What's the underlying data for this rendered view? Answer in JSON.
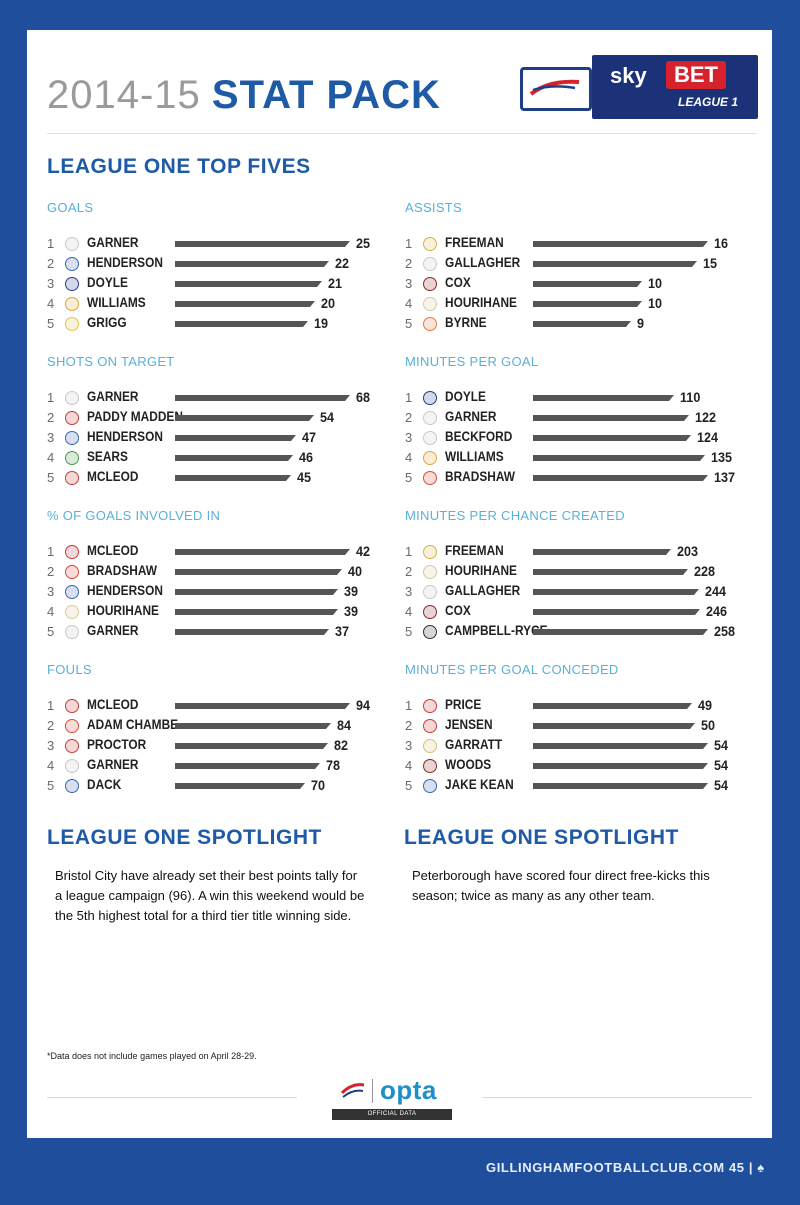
{
  "title": {
    "year": "2014-15",
    "main": "STAT PACK"
  },
  "brand": {
    "sky": "sky",
    "bet": "BET",
    "league": "LEAGUE 1"
  },
  "section_heading": "LEAGUE ONE TOP FIVES",
  "tables": [
    {
      "title": "GOALS",
      "rows": [
        {
          "rank": "1",
          "name": "GARNER",
          "value": 25,
          "badge": "#c9c9c9"
        },
        {
          "rank": "2",
          "name": "HENDERSON",
          "value": 22,
          "badge": "#3a66b5"
        },
        {
          "rank": "3",
          "name": "DOYLE",
          "value": 21,
          "badge": "#283b8a"
        },
        {
          "rank": "4",
          "name": "WILLIAMS",
          "value": 20,
          "badge": "#e8a33c"
        },
        {
          "rank": "5",
          "name": "GRIGG",
          "value": 19,
          "badge": "#e4c14a"
        }
      ]
    },
    {
      "title": "ASSISTS",
      "rows": [
        {
          "rank": "1",
          "name": "FREEMAN",
          "value": 16,
          "badge": "#d9b24c"
        },
        {
          "rank": "2",
          "name": "GALLAGHER",
          "value": 15,
          "badge": "#c9c9c9"
        },
        {
          "rank": "3",
          "name": "COX",
          "value": 10,
          "badge": "#8a2a2a"
        },
        {
          "rank": "4",
          "name": "HOURIHANE",
          "value": 10,
          "badge": "#d9c9a0"
        },
        {
          "rank": "5",
          "name": "BYRNE",
          "value": 9,
          "badge": "#e37b3a"
        }
      ]
    },
    {
      "title": "SHOTS ON TARGET",
      "rows": [
        {
          "rank": "1",
          "name": "GARNER",
          "value": 68,
          "badge": "#c9c9c9"
        },
        {
          "rank": "2",
          "name": "PADDY MADDEN",
          "value": 54,
          "badge": "#c93c3c"
        },
        {
          "rank": "3",
          "name": "HENDERSON",
          "value": 47,
          "badge": "#3a66b5"
        },
        {
          "rank": "4",
          "name": "SEARS",
          "value": 46,
          "badge": "#4a9a4a"
        },
        {
          "rank": "5",
          "name": "MCLEOD",
          "value": 45,
          "badge": "#c93c3c"
        }
      ]
    },
    {
      "title": "MINUTES PER GOAL",
      "rows": [
        {
          "rank": "1",
          "name": "DOYLE",
          "value": 110,
          "badge": "#283b8a"
        },
        {
          "rank": "2",
          "name": "GARNER",
          "value": 122,
          "badge": "#c9c9c9"
        },
        {
          "rank": "3",
          "name": "BECKFORD",
          "value": 124,
          "badge": "#c9c9c9"
        },
        {
          "rank": "4",
          "name": "WILLIAMS",
          "value": 135,
          "badge": "#e8a33c"
        },
        {
          "rank": "5",
          "name": "BRADSHAW",
          "value": 137,
          "badge": "#d94c3a"
        }
      ]
    },
    {
      "title": "% OF GOALS INVOLVED IN",
      "rows": [
        {
          "rank": "1",
          "name": "MCLEOD",
          "value": 42,
          "badge": "#c93c3c"
        },
        {
          "rank": "2",
          "name": "BRADSHAW",
          "value": 40,
          "badge": "#d94c3a"
        },
        {
          "rank": "3",
          "name": "HENDERSON",
          "value": 39,
          "badge": "#3a66b5"
        },
        {
          "rank": "4",
          "name": "HOURIHANE",
          "value": 39,
          "badge": "#d9c9a0"
        },
        {
          "rank": "5",
          "name": "GARNER",
          "value": 37,
          "badge": "#c9c9c9"
        }
      ]
    },
    {
      "title": "MINUTES PER CHANCE CREATED",
      "rows": [
        {
          "rank": "1",
          "name": "FREEMAN",
          "value": 203,
          "badge": "#d9b24c"
        },
        {
          "rank": "2",
          "name": "HOURIHANE",
          "value": 228,
          "badge": "#d9c9a0"
        },
        {
          "rank": "3",
          "name": "GALLAGHER",
          "value": 244,
          "badge": "#c9c9c9"
        },
        {
          "rank": "4",
          "name": "COX",
          "value": 246,
          "badge": "#8a2a2a"
        },
        {
          "rank": "5",
          "name": "CAMPBELL-RYCE",
          "value": 258,
          "badge": "#333333"
        }
      ]
    },
    {
      "title": "FOULS",
      "rows": [
        {
          "rank": "1",
          "name": "MCLEOD",
          "value": 94,
          "badge": "#c93c3c"
        },
        {
          "rank": "2",
          "name": "ADAM CHAMBE...",
          "value": 84,
          "badge": "#d94c3a"
        },
        {
          "rank": "3",
          "name": "PROCTOR",
          "value": 82,
          "badge": "#c93c3c"
        },
        {
          "rank": "4",
          "name": "GARNER",
          "value": 78,
          "badge": "#c9c9c9"
        },
        {
          "rank": "5",
          "name": "DACK",
          "value": 70,
          "badge": "#3a66b5"
        }
      ]
    },
    {
      "title": "MINUTES PER GOAL CONCEDED",
      "rows": [
        {
          "rank": "1",
          "name": "PRICE",
          "value": 49,
          "badge": "#c93c3c"
        },
        {
          "rank": "2",
          "name": "JENSEN",
          "value": 50,
          "badge": "#c93c3c"
        },
        {
          "rank": "3",
          "name": "GARRATT",
          "value": 54,
          "badge": "#d9c07a"
        },
        {
          "rank": "4",
          "name": "WOODS",
          "value": 54,
          "badge": "#8a2a2a"
        },
        {
          "rank": "5",
          "name": "JAKE KEAN",
          "value": 54,
          "badge": "#3a66b5"
        }
      ]
    }
  ],
  "spotlights": [
    {
      "heading": "LEAGUE ONE SPOTLIGHT",
      "text": "Bristol City have already set their best points tally for a league campaign (96). A win this weekend would be the 5th highest total for a third tier title winning side."
    },
    {
      "heading": "LEAGUE ONE SPOTLIGHT",
      "text": "Peterborough have scored four direct free-kicks this season; twice as many as any other team."
    }
  ],
  "footnote": "*Data does not include games played on April 28-29.",
  "opta": {
    "word": "opta",
    "caption": "OFFICIAL DATA"
  },
  "footer": "GILLINGHAMFOOTBALLCLUB.COM 45 | ♠"
}
